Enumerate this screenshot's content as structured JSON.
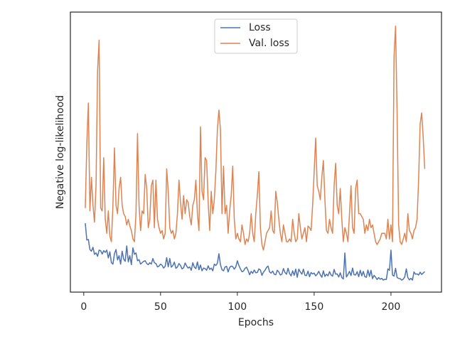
{
  "chart_data": {
    "type": "line",
    "xlabel": "Epochs",
    "ylabel": "Negative log-likelihood",
    "x": [
      1,
      2,
      3,
      4,
      5,
      6,
      7,
      8,
      9,
      10,
      11,
      12,
      13,
      14,
      15,
      16,
      17,
      18,
      19,
      20,
      21,
      22,
      23,
      24,
      25,
      26,
      27,
      28,
      29,
      30,
      31,
      32,
      33,
      34,
      35,
      36,
      37,
      38,
      39,
      40,
      41,
      42,
      43,
      44,
      45,
      46,
      47,
      48,
      49,
      50,
      51,
      52,
      53,
      54,
      55,
      56,
      57,
      58,
      59,
      60,
      61,
      62,
      63,
      64,
      65,
      66,
      67,
      68,
      69,
      70,
      71,
      72,
      73,
      74,
      75,
      76,
      77,
      78,
      79,
      80,
      81,
      82,
      83,
      84,
      85,
      86,
      87,
      88,
      89,
      90,
      91,
      92,
      93,
      94,
      95,
      96,
      97,
      98,
      99,
      100,
      101,
      102,
      103,
      104,
      105,
      106,
      107,
      108,
      109,
      110,
      111,
      112,
      113,
      114,
      115,
      116,
      117,
      118,
      119,
      120,
      121,
      122,
      123,
      124,
      125,
      126,
      127,
      128,
      129,
      130,
      131,
      132,
      133,
      134,
      135,
      136,
      137,
      138,
      139,
      140,
      141,
      142,
      143,
      144,
      145,
      146,
      147,
      148,
      149,
      150,
      151,
      152,
      153,
      154,
      155,
      156,
      157,
      158,
      159,
      160,
      161,
      162,
      163,
      164,
      165,
      166,
      167,
      168,
      169,
      170,
      171,
      172,
      173,
      174,
      175,
      176,
      177,
      178,
      179,
      180,
      181,
      182,
      183,
      184,
      185,
      186,
      187,
      188,
      189,
      190,
      191,
      192,
      193,
      194,
      195,
      196,
      197,
      198,
      199,
      200,
      201,
      202,
      203,
      204,
      205,
      206,
      207,
      208,
      209,
      210,
      211,
      212,
      213,
      214,
      215,
      216,
      217,
      218,
      219,
      220,
      221,
      222
    ],
    "series": [
      {
        "name": "Loss",
        "color": "#4c72b0",
        "values": [
          24.6,
          18.6,
          18.8,
          15.2,
          14.6,
          16,
          13.5,
          14,
          12.8,
          15,
          14.8,
          13.6,
          14.8,
          14.2,
          15,
          12.2,
          14.4,
          10.5,
          10,
          13.7,
          15.2,
          11.5,
          13,
          10,
          14.6,
          11.8,
          11,
          16.5,
          10.8,
          13,
          9.8,
          15.8,
          13.5,
          14,
          11.2,
          11.6,
          10,
          10.5,
          11,
          11.2,
          10.2,
          9.8,
          10.5,
          10,
          12,
          10.5,
          10.2,
          9,
          9.3,
          10,
          9.6,
          8.6,
          9.2,
          12.3,
          9,
          12,
          8.9,
          9.5,
          10.7,
          8.5,
          9,
          10.2,
          9.5,
          8.3,
          8.7,
          10.4,
          9.3,
          8.6,
          9,
          7.8,
          10.5,
          8.9,
          8.4,
          10.8,
          8,
          9.7,
          7.6,
          8.6,
          8.4,
          7.8,
          9.4,
          8.1,
          8.6,
          7.6,
          10,
          9.5,
          10.3,
          13.7,
          9.8,
          8,
          7.6,
          9,
          9.2,
          7.2,
          8.8,
          9.3,
          9.1,
          8.2,
          9,
          11.2,
          9.5,
          8.3,
          7.3,
          7.5,
          8.5,
          8.9,
          7.7,
          6.2,
          7.4,
          6.7,
          7.9,
          6.9,
          7,
          8.3,
          7.9,
          6,
          7.1,
          7.8,
          8.8,
          9.3,
          7.2,
          6.8,
          7.5,
          6.4,
          6.2,
          7.8,
          7.2,
          6.1,
          6.4,
          8.4,
          7,
          6.4,
          8.5,
          6.6,
          5.8,
          7.6,
          6,
          8.2,
          5.3,
          8.2,
          7.2,
          6.4,
          8.2,
          6,
          5.9,
          7.5,
          5.5,
          7,
          6.5,
          6.8,
          5.8,
          6.4,
          7.4,
          6.2,
          5.3,
          7.6,
          5.6,
          6.4,
          5.8,
          7.3,
          6.1,
          5.7,
          8.1,
          6.4,
          6.5,
          5.4,
          6.9,
          5.2,
          4.7,
          14,
          5.4,
          6.3,
          7.4,
          5.9,
          8.6,
          6.2,
          6.1,
          7.3,
          5.5,
          7.8,
          5.8,
          7.4,
          5.5,
          5.3,
          7.9,
          5.6,
          7.8,
          4.8,
          6,
          5.3,
          4.5,
          5.2,
          4.6,
          4.9,
          4.3,
          4.6,
          4.5,
          8.3,
          7.8,
          15,
          6.1,
          5.7,
          8.5,
          5.2,
          4.9,
          4.8,
          4.3,
          4.6,
          5.5,
          8.3,
          5.2,
          4.4,
          4.9,
          4.3,
          7.2,
          6.4,
          6.5,
          6.1,
          7.1,
          6.3,
          6.8,
          7.3
        ]
      },
      {
        "name": "Val. loss",
        "color": "#dd8452",
        "values": [
          30,
          53,
          67.5,
          29,
          41,
          31,
          25,
          38,
          79,
          90,
          30,
          29,
          48,
          26,
          21,
          29,
          20,
          18,
          31,
          51.5,
          31,
          28,
          37,
          41,
          31,
          28,
          27,
          24,
          26,
          23.6,
          22,
          19,
          18,
          28,
          56.6,
          31,
          22,
          29,
          28,
          42,
          37,
          23,
          26,
          38,
          40,
          23,
          40,
          26,
          23,
          21,
          22,
          19,
          21,
          44,
          36,
          23,
          21,
          22,
          19,
          21,
          28,
          40,
          32,
          26,
          34.5,
          28,
          33,
          32,
          27,
          24,
          31,
          33,
          40,
          28,
          22,
          59,
          36,
          33,
          48,
          47,
          32,
          22,
          36,
          28,
          33,
          43,
          58,
          65,
          58,
          28,
          45,
          28,
          31,
          21,
          29,
          34.5,
          45,
          26,
          19,
          21,
          19,
          18,
          24,
          21,
          17,
          19,
          18,
          21,
          28,
          21,
          18,
          28,
          34.5,
          43,
          23,
          17,
          15,
          18,
          21,
          22,
          23,
          29,
          22,
          21,
          36,
          32,
          26,
          21,
          18,
          24,
          21,
          18,
          18,
          19,
          18,
          26,
          21,
          18,
          19,
          28,
          23,
          19,
          21,
          23,
          18,
          23.6,
          23,
          22,
          31,
          43,
          55,
          38,
          36,
          33,
          41,
          47,
          33,
          22,
          21,
          26,
          23,
          21,
          38,
          46,
          31,
          28,
          37,
          26,
          18,
          23,
          21,
          18,
          28,
          38,
          23,
          21,
          37,
          40,
          28,
          28,
          27,
          26,
          21,
          24,
          22,
          26,
          23,
          24,
          21,
          18,
          17,
          18,
          19,
          21,
          21,
          21,
          19,
          26,
          19,
          24,
          18,
          84,
          95,
          64,
          24,
          18,
          17,
          19,
          21,
          18,
          28,
          22,
          21,
          19,
          22,
          23,
          26,
          40,
          60,
          64,
          55,
          44
        ]
      }
    ],
    "xlim": [
      -8.7,
      232.9
    ],
    "ylim": [
      0,
      100
    ],
    "xticks": [
      0,
      50,
      100,
      150,
      200
    ],
    "legend": "upper center"
  }
}
